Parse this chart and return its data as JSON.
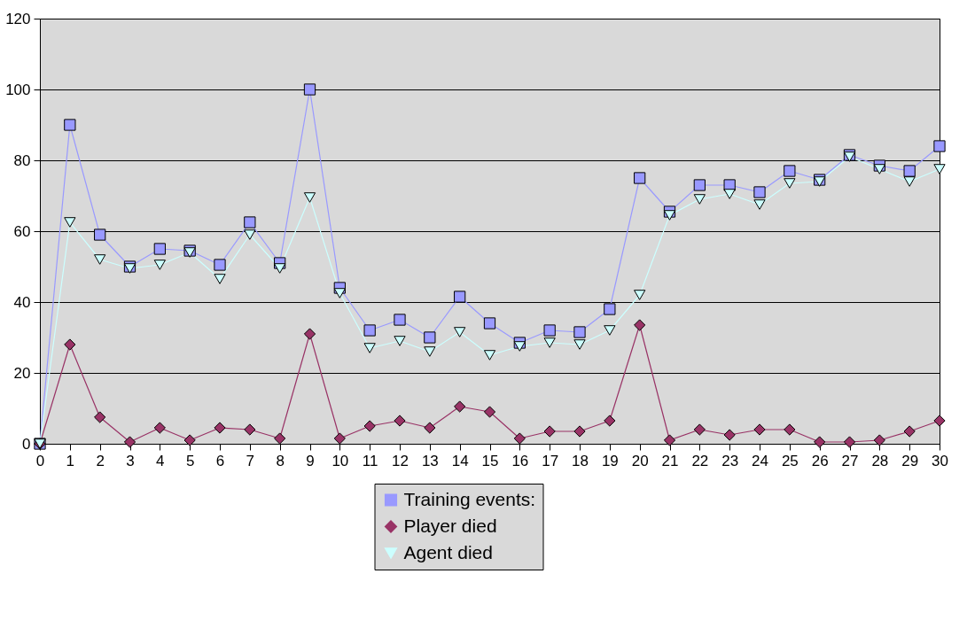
{
  "chart_data": {
    "type": "line",
    "x": [
      0,
      1,
      2,
      3,
      4,
      5,
      6,
      7,
      8,
      9,
      10,
      11,
      12,
      13,
      14,
      15,
      16,
      17,
      18,
      19,
      20,
      21,
      22,
      23,
      24,
      25,
      26,
      27,
      28,
      29,
      30
    ],
    "xlim": [
      0,
      30
    ],
    "xticks": [
      0,
      1,
      2,
      3,
      4,
      5,
      6,
      7,
      8,
      9,
      10,
      11,
      12,
      13,
      14,
      15,
      16,
      17,
      18,
      19,
      20,
      21,
      22,
      23,
      24,
      25,
      26,
      27,
      28,
      29,
      30
    ],
    "ylim": [
      0,
      120
    ],
    "yticks": [
      0,
      20,
      40,
      60,
      80,
      100,
      120
    ],
    "grid": "y",
    "legend": "bottom",
    "series": [
      {
        "name": "Training events:",
        "color": "#9999ff",
        "marker": "square",
        "values": [
          0,
          90,
          59,
          50,
          55,
          54.5,
          50.5,
          62.5,
          51,
          100,
          44,
          32,
          35,
          30,
          41.5,
          34,
          28.5,
          32,
          31.5,
          38,
          75,
          65.5,
          73,
          73,
          71,
          77,
          74.5,
          81.5,
          78.5,
          77,
          84
        ]
      },
      {
        "name": "Player died",
        "color": "#993366",
        "marker": "diamond",
        "values": [
          0,
          28,
          7.5,
          0.5,
          4.5,
          1,
          4.5,
          4,
          1.5,
          31,
          1.5,
          5,
          6.5,
          4.5,
          10.5,
          9,
          1.5,
          3.5,
          3.5,
          6.5,
          33.5,
          1,
          4,
          2.5,
          4,
          4,
          0.5,
          0.5,
          1,
          3.5,
          6.5
        ]
      },
      {
        "name": "Agent died",
        "color": "#ccffff",
        "marker": "triangle",
        "values": [
          0,
          62.5,
          52,
          49.5,
          50.5,
          54,
          46.5,
          59,
          49.5,
          69.5,
          42.5,
          27,
          29,
          26,
          31.5,
          25,
          27.5,
          28.5,
          28,
          32,
          42,
          64.5,
          69,
          70.5,
          67.5,
          73.5,
          74,
          81,
          77.5,
          74,
          77.5
        ]
      }
    ]
  }
}
